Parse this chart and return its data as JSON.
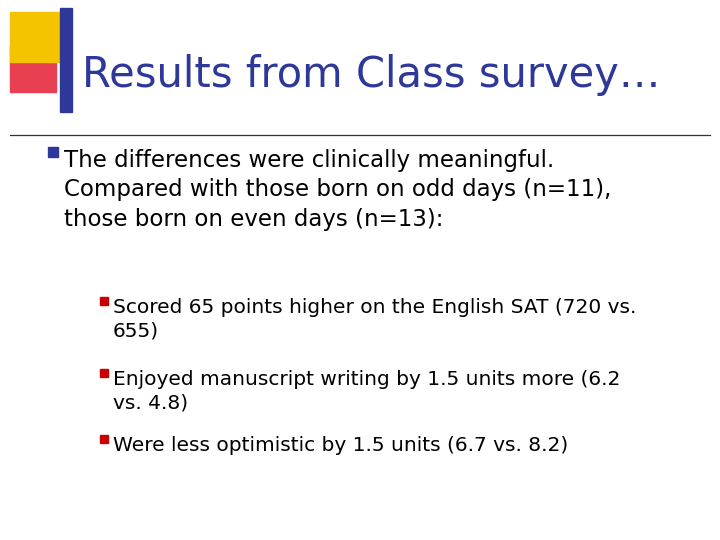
{
  "title": "Results from Class survey…",
  "title_color": "#2E3899",
  "title_fontsize": 30,
  "background_color": "#FFFFFF",
  "bullet1_text": "The differences were clinically meaningful.\nCompared with those born on odd days (n=11),\nthose born on even days (n=13):",
  "bullet1_fontsize": 16.5,
  "sub_bullets": [
    "Scored 65 points higher on the English SAT (720 vs.\n655)",
    "Enjoyed manuscript writing by 1.5 units more (6.2\nvs. 4.8)",
    "Were less optimistic by 1.5 units (6.7 vs. 8.2)"
  ],
  "sub_bullet_fontsize": 14.5,
  "bullet_color": "#000000",
  "square_bullet_color_l1": "#2E3899",
  "square_bullet_color_l2": "#CC0000",
  "decoration_yellow": "#F5C400",
  "decoration_red": "#E84050",
  "decoration_blue": "#2E3899",
  "line_color": "#333333"
}
